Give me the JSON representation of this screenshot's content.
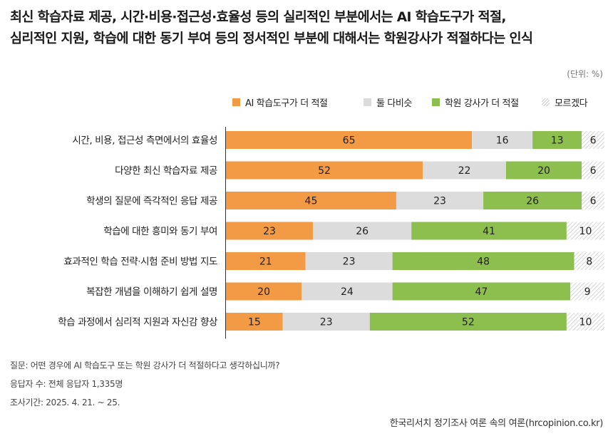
{
  "header": {
    "title_line1": "최신 학습자료 제공, 시간·비용·접근성·효율성 등의 실리적인 부분에서는 AI 학습도구가 적절,",
    "title_line2": "심리적인 지원, 학습에 대한 동기 부여 등의 정서적인 부분에 대해서는 학원강사가 적절하다는 인식",
    "unit": "(단위: %)"
  },
  "chart_data": {
    "type": "bar",
    "orientation": "horizontal",
    "stacked": true,
    "legend_position": "top-right",
    "categories": [
      "시간, 비용, 접근성 측면에서의 효율성",
      "다양한 최신 학습자료 제공",
      "학생의 질문에 즉각적인 응답 제공",
      "학습에 대한 흥미와 동기 부여",
      "효과적인 학습 전략·시험 준비 방법 지도",
      "복잡한 개념을 이해하기 쉽게 설명",
      "학습 과정에서 심리적 지원과 자신감 향상"
    ],
    "series": [
      {
        "name": "AI 학습도구가 더 적절",
        "color": "#f39a45",
        "values": [
          65,
          52,
          45,
          23,
          21,
          20,
          15
        ]
      },
      {
        "name": "둘 다비슷",
        "color": "#dcdcdc",
        "values": [
          16,
          22,
          23,
          26,
          23,
          24,
          23
        ]
      },
      {
        "name": "학원 강사가 더 적절",
        "color": "#8dbf4e",
        "values": [
          13,
          20,
          26,
          41,
          48,
          47,
          52
        ]
      },
      {
        "name": "모르겠다",
        "color": "hatch",
        "values": [
          6,
          6,
          6,
          10,
          8,
          9,
          10
        ]
      }
    ],
    "xlim": [
      0,
      100
    ]
  },
  "footer": {
    "question": "질문: 어떤 경우에 AI 학습도구 또는 학원 강사가 더 적절하다고 생각하십니까?",
    "respondents": "응답자 수: 전체 응답자 1,335명",
    "period": "조사기간: 2025. 4. 21. ~ 25.",
    "source": "한국리서치 정기조사 여론 속의 여론(hrcopinion.co.kr)"
  }
}
